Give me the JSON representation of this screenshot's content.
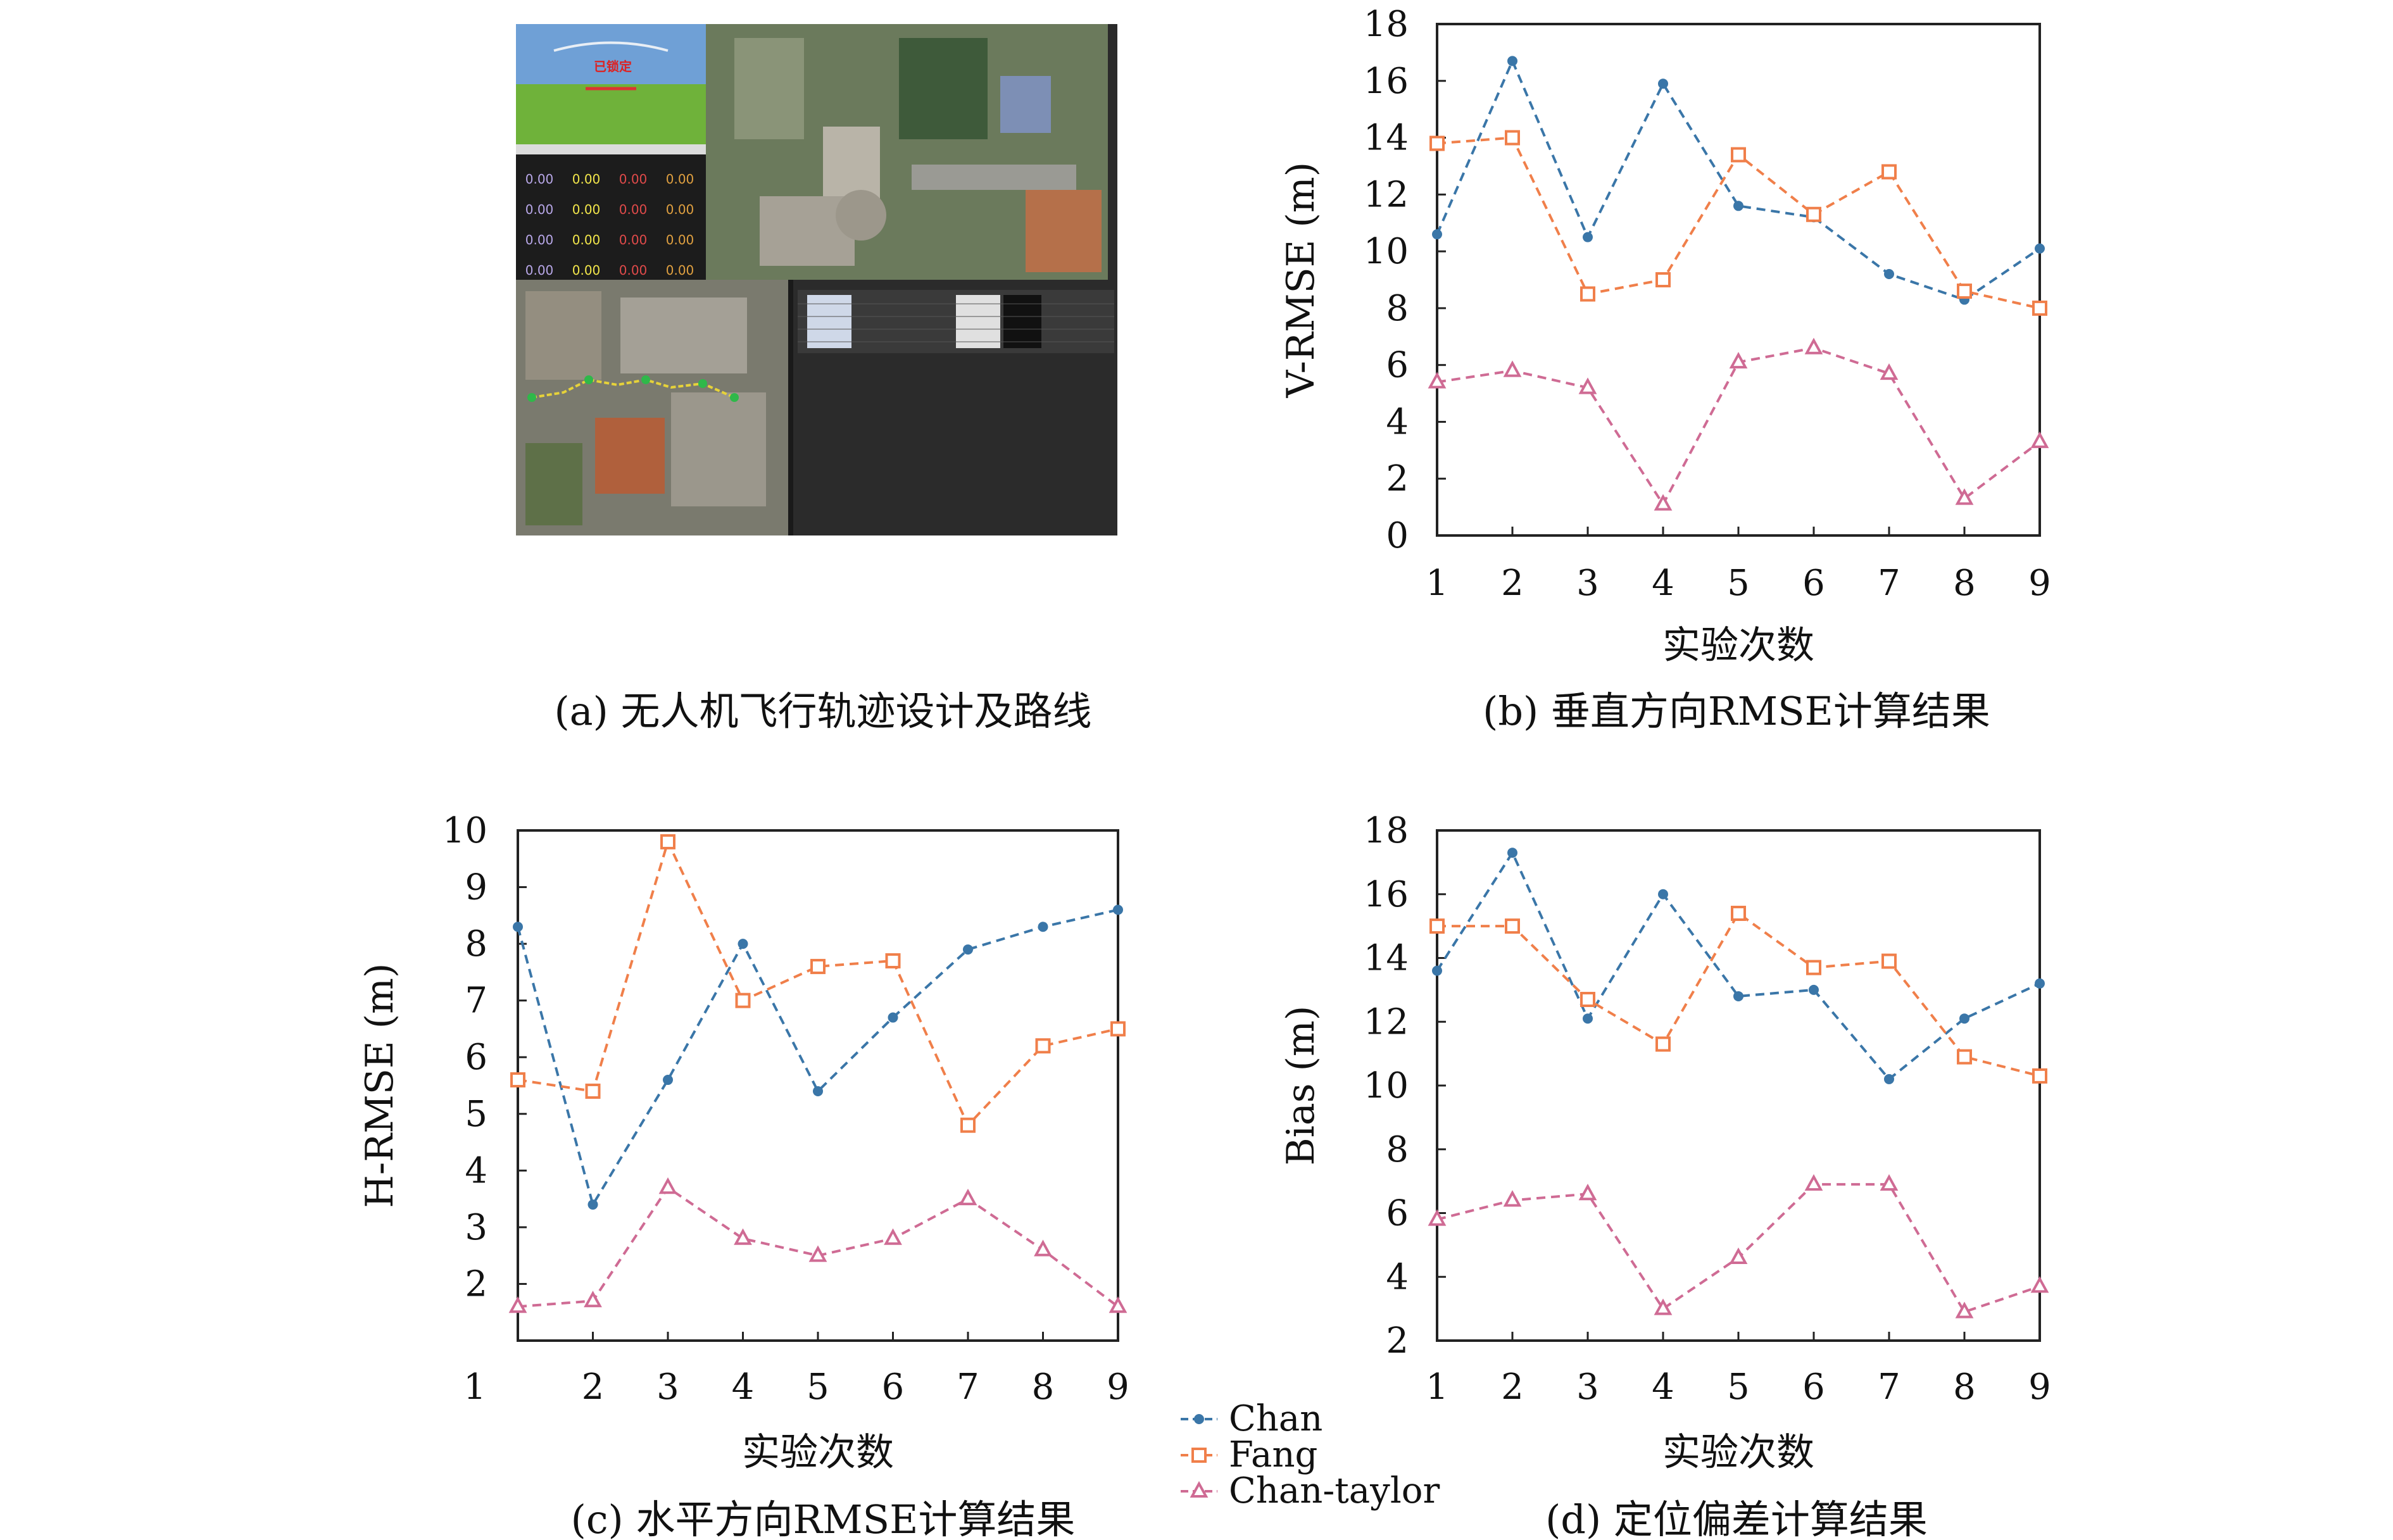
{
  "captions": {
    "a": "(a) 无人机飞行轨迹设计及路线",
    "b": "(b) 垂直方向RMSE计算结果",
    "c": "(c) 水平方向RMSE计算结果",
    "d": "(d) 定位偏差计算结果"
  },
  "series_style": [
    {
      "name": "Chan",
      "color": "#3a76a8",
      "marker": "dot"
    },
    {
      "name": "Fang",
      "color": "#f07f4a",
      "marker": "square"
    },
    {
      "name": "Chan-taylor",
      "color": "#cf6b94",
      "marker": "triangle"
    }
  ],
  "legend": {
    "entries": [
      "Chan",
      "Fang",
      "Chan-taylor"
    ]
  },
  "screenshot_panel": {
    "status_text": "已锁定",
    "gauge_values": [
      "0.00",
      "0.00",
      "0.00",
      "0.00",
      "0.00",
      "0.00",
      "0.00",
      "0.00",
      "0.00",
      "0.00",
      "0.00",
      "0.00",
      "0.00",
      "0.00",
      "0.00",
      "0.00"
    ]
  },
  "chart_data": [
    {
      "id": "b",
      "type": "line",
      "title": "",
      "xlabel": "实验次数",
      "ylabel": "V-RMSE (m)",
      "x": [
        1,
        2,
        3,
        4,
        5,
        6,
        7,
        8,
        9
      ],
      "xticks": [
        "1",
        "2",
        "3",
        "4",
        "5",
        "6",
        "7",
        "8",
        "9"
      ],
      "yticks": [
        "0",
        "2",
        "4",
        "6",
        "8",
        "10",
        "12",
        "14",
        "16",
        "18"
      ],
      "xlim": [
        1,
        9
      ],
      "ylim": [
        0,
        18
      ],
      "series": [
        {
          "name": "Chan",
          "values": [
            10.6,
            16.7,
            10.5,
            15.9,
            11.6,
            11.2,
            9.2,
            8.3,
            10.1
          ]
        },
        {
          "name": "Fang",
          "values": [
            13.8,
            14.0,
            8.5,
            9.0,
            13.4,
            11.3,
            12.8,
            8.6,
            8.0
          ]
        },
        {
          "name": "Chan-taylor",
          "values": [
            5.4,
            5.8,
            5.2,
            1.1,
            6.1,
            6.6,
            5.7,
            1.3,
            3.3
          ]
        }
      ]
    },
    {
      "id": "c",
      "type": "line",
      "title": "",
      "xlabel": "实验次数",
      "ylabel": "H-RMSE (m)",
      "x": [
        1,
        2,
        3,
        4,
        5,
        6,
        7,
        8,
        9
      ],
      "xticks": [
        "1",
        "2",
        "3",
        "4",
        "5",
        "6",
        "7",
        "8",
        "9"
      ],
      "yticks": [
        "2",
        "3",
        "4",
        "5",
        "6",
        "7",
        "8",
        "9",
        "10"
      ],
      "xlim": [
        1,
        9
      ],
      "ylim": [
        1,
        10
      ],
      "series": [
        {
          "name": "Chan",
          "values": [
            8.3,
            3.4,
            5.6,
            8.0,
            5.4,
            6.7,
            7.9,
            8.3,
            8.6
          ]
        },
        {
          "name": "Fang",
          "values": [
            5.6,
            5.4,
            9.8,
            7.0,
            7.6,
            7.7,
            4.8,
            6.2,
            6.5
          ]
        },
        {
          "name": "Chan-taylor",
          "values": [
            1.6,
            1.7,
            3.7,
            2.8,
            2.5,
            2.8,
            3.5,
            2.6,
            1.6
          ]
        }
      ]
    },
    {
      "id": "d",
      "type": "line",
      "title": "",
      "xlabel": "实验次数",
      "ylabel": "Bias (m)",
      "x": [
        1,
        2,
        3,
        4,
        5,
        6,
        7,
        8,
        9
      ],
      "xticks": [
        "1",
        "2",
        "3",
        "4",
        "5",
        "6",
        "7",
        "8",
        "9"
      ],
      "yticks": [
        "2",
        "4",
        "6",
        "8",
        "10",
        "12",
        "14",
        "16",
        "18"
      ],
      "xlim": [
        1,
        9
      ],
      "ylim": [
        2,
        18
      ],
      "series": [
        {
          "name": "Chan",
          "values": [
            13.6,
            17.3,
            12.1,
            16.0,
            12.8,
            13.0,
            10.2,
            12.1,
            13.2
          ]
        },
        {
          "name": "Fang",
          "values": [
            15.0,
            15.0,
            12.7,
            11.3,
            15.4,
            13.7,
            13.9,
            10.9,
            10.3
          ]
        },
        {
          "name": "Chan-taylor",
          "values": [
            5.8,
            6.4,
            6.6,
            3.0,
            4.6,
            6.9,
            6.9,
            2.9,
            3.7
          ]
        }
      ]
    }
  ]
}
